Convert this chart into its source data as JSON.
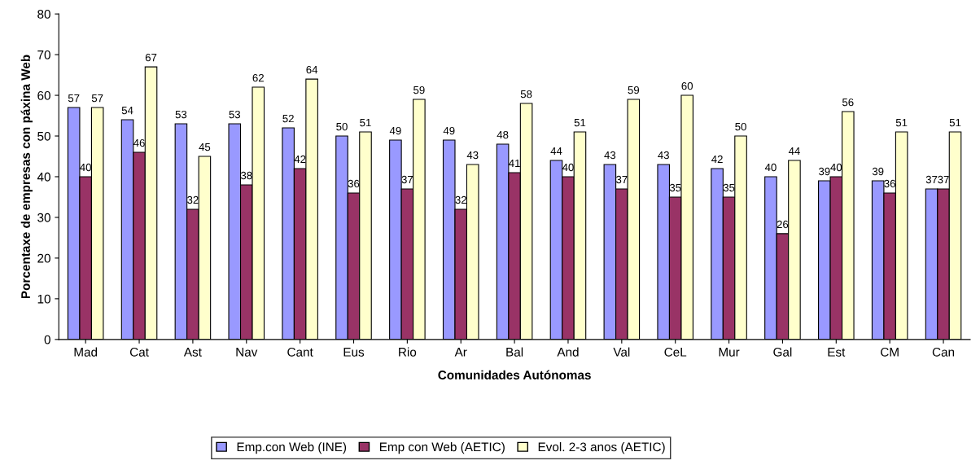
{
  "chart_data": {
    "type": "bar",
    "xlabel": "Comunidades Autónomas",
    "ylabel": "Porcentaxe de empresas con páxina Web",
    "categories": [
      "Mad",
      "Cat",
      "Ast",
      "Nav",
      "Cant",
      "Eus",
      "Rio",
      "Ar",
      "Bal",
      "And",
      "Val",
      "CeL",
      "Mur",
      "Gal",
      "Est",
      "CM",
      "Can"
    ],
    "series": [
      {
        "name": "Emp.con Web (INE)",
        "color": "#9999ff",
        "values": [
          57,
          54,
          53,
          53,
          52,
          50,
          49,
          49,
          48,
          44,
          43,
          43,
          42,
          40,
          39,
          39,
          37
        ]
      },
      {
        "name": "Emp con Web (AETIC)",
        "color": "#993366",
        "values": [
          40,
          46,
          32,
          38,
          42,
          36,
          37,
          32,
          41,
          40,
          37,
          35,
          35,
          26,
          40,
          36,
          37
        ]
      },
      {
        "name": "Evol. 2-3 anos (AETIC)",
        "color": "#ffffcc",
        "values": [
          57,
          67,
          45,
          62,
          64,
          51,
          59,
          43,
          58,
          51,
          59,
          60,
          50,
          44,
          56,
          51,
          51
        ]
      }
    ],
    "ylim": [
      0,
      80
    ],
    "yticks": [
      0,
      10,
      20,
      30,
      40,
      50,
      60,
      70,
      80
    ],
    "data_labels": true,
    "grid": false,
    "legend": "bottom"
  }
}
